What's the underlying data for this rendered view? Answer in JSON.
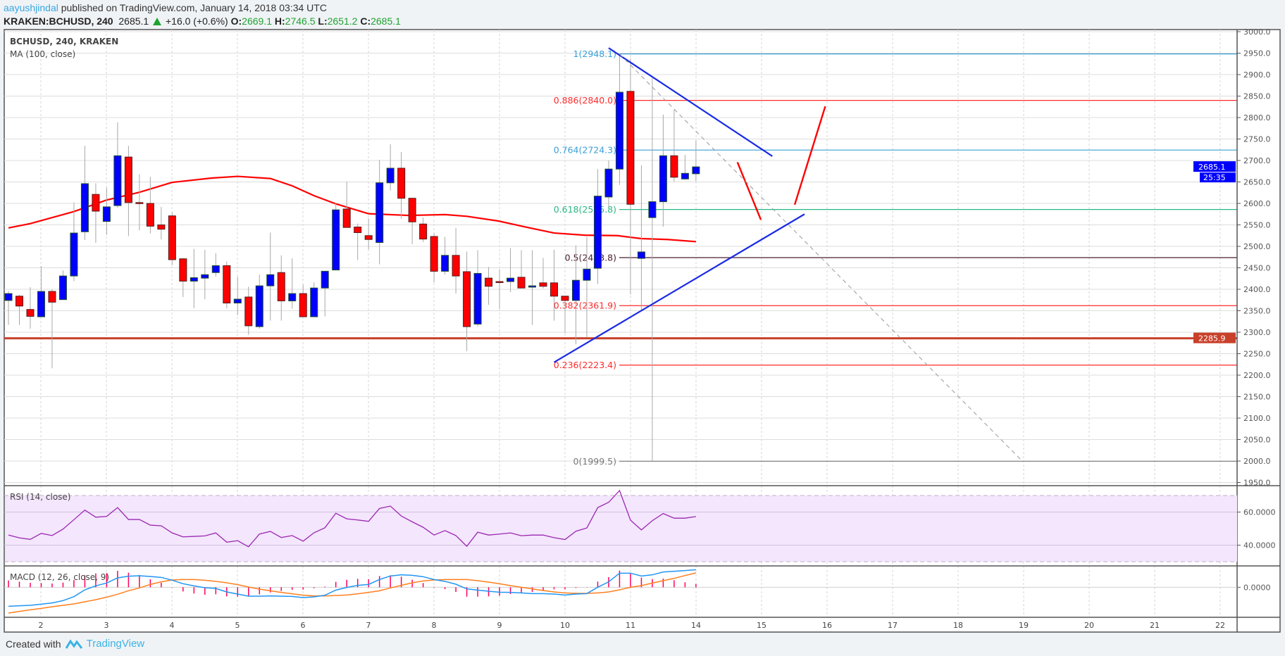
{
  "header": {
    "author": "aayushjindal",
    "published": " published on TradingView.com, January 14, 2018 03:34 UTC",
    "symbol": "KRAKEN:BCHUSD, 240",
    "last": "2685.1",
    "change": "+16.0 (+0.6%)",
    "o_label": "O:",
    "o": "2669.1",
    "h_label": "H:",
    "h": "2746.5",
    "l_label": "L:",
    "l": "2651.2",
    "c_label": "C:",
    "c": "2685.1"
  },
  "legend": {
    "main": "BCHUSD, 240, KRAKEN",
    "ma": "MA (100, close)",
    "rsi": "RSI (14, close)",
    "macd": "MACD (12, 26, close, 9)"
  },
  "colors": {
    "up": "#0000ff",
    "down": "#ff0000",
    "ma": "#ff0000",
    "support": "#c8402a",
    "trend": "#1a2be6",
    "rsi": "#9c27b0",
    "macd": "#2196f3",
    "signal": "#ff7f1f",
    "hist": "#ff0060",
    "fib_blue": "#3a9fd6",
    "fib_red": "#ff2a2a",
    "fib_green": "#2bb783",
    "fib_dark": "#4a1d2d",
    "fib_gray": "#777777"
  },
  "footer": {
    "created_with": "Created with",
    "brand": "TradingView"
  },
  "chart_data": {
    "type": "candlestick",
    "symbol": "BCHUSD",
    "interval": "240",
    "exchange": "KRAKEN",
    "ylim": [
      1950,
      3000
    ],
    "y_ticks": [
      "1950.0",
      "2000.0",
      "2050.0",
      "2100.0",
      "2150.0",
      "2200.0",
      "2250.0",
      "2300.0",
      "2350.0",
      "2400.0",
      "2450.0",
      "2500.0",
      "2550.0",
      "2600.0",
      "2650.0",
      "2700.0",
      "2750.0",
      "2800.0",
      "2850.0",
      "2900.0",
      "2950.0",
      "3000.0"
    ],
    "x_labels": [
      "2",
      "3",
      "4",
      "5",
      "6",
      "7",
      "8",
      "9",
      "10",
      "11",
      "14",
      "15",
      "16",
      "17",
      "18",
      "19",
      "20",
      "21",
      "22"
    ],
    "last_price_label": "2685.1",
    "countdown_label": "25:35",
    "support": {
      "value": 2285.9,
      "label": "2285.9"
    },
    "ohlc": [
      [
        2374,
        2396,
        2317,
        2390
      ],
      [
        2384,
        2387,
        2317,
        2361
      ],
      [
        2353,
        2405,
        2308,
        2337
      ],
      [
        2336,
        2454,
        2336,
        2395
      ],
      [
        2395,
        2400,
        2216,
        2370
      ],
      [
        2376,
        2444,
        2376,
        2431
      ],
      [
        2431,
        2602,
        2419,
        2531
      ],
      [
        2534,
        2734,
        2515,
        2646
      ],
      [
        2621,
        2647,
        2508,
        2582
      ],
      [
        2558,
        2637,
        2527,
        2592
      ],
      [
        2595,
        2789,
        2590,
        2711
      ],
      [
        2708,
        2734,
        2524,
        2602
      ],
      [
        2602,
        2668,
        2537,
        2601
      ],
      [
        2600,
        2662,
        2530,
        2547
      ],
      [
        2550,
        2592,
        2516,
        2540
      ],
      [
        2571,
        2579,
        2456,
        2469
      ],
      [
        2471,
        2473,
        2382,
        2419
      ],
      [
        2419,
        2494,
        2356,
        2427
      ],
      [
        2426,
        2492,
        2377,
        2434
      ],
      [
        2439,
        2484,
        2430,
        2455
      ],
      [
        2455,
        2465,
        2356,
        2368
      ],
      [
        2368,
        2429,
        2340,
        2377
      ],
      [
        2382,
        2406,
        2294,
        2315
      ],
      [
        2313,
        2434,
        2308,
        2408
      ],
      [
        2408,
        2532,
        2327,
        2434
      ],
      [
        2439,
        2479,
        2327,
        2373
      ],
      [
        2373,
        2472,
        2355,
        2390
      ],
      [
        2390,
        2411,
        2336,
        2336
      ],
      [
        2336,
        2416,
        2336,
        2403
      ],
      [
        2403,
        2442,
        2337,
        2442
      ],
      [
        2445,
        2602,
        2444,
        2585
      ],
      [
        2587,
        2651,
        2544,
        2544
      ],
      [
        2545,
        2553,
        2468,
        2532
      ],
      [
        2525,
        2565,
        2493,
        2516
      ],
      [
        2509,
        2701,
        2458,
        2648
      ],
      [
        2648,
        2738,
        2630,
        2682
      ],
      [
        2682,
        2720,
        2564,
        2612
      ],
      [
        2612,
        2612,
        2505,
        2557
      ],
      [
        2552,
        2567,
        2510,
        2517
      ],
      [
        2523,
        2531,
        2416,
        2442
      ],
      [
        2442,
        2522,
        2434,
        2479
      ],
      [
        2479,
        2543,
        2390,
        2431
      ],
      [
        2441,
        2488,
        2256,
        2313
      ],
      [
        2319,
        2491,
        2313,
        2437
      ],
      [
        2426,
        2452,
        2364,
        2407
      ],
      [
        2418,
        2447,
        2355,
        2417
      ],
      [
        2418,
        2496,
        2393,
        2426
      ],
      [
        2428,
        2491,
        2402,
        2403
      ],
      [
        2405,
        2491,
        2317,
        2408
      ],
      [
        2415,
        2473,
        2402,
        2407
      ],
      [
        2415,
        2492,
        2327,
        2384
      ],
      [
        2384,
        2384,
        2298,
        2374
      ],
      [
        2374,
        2502,
        2272,
        2421
      ],
      [
        2421,
        2522,
        2288,
        2447
      ],
      [
        2449,
        2680,
        2412,
        2617
      ],
      [
        2615,
        2700,
        2591,
        2680
      ],
      [
        2680,
        2948,
        2643,
        2859
      ],
      [
        2861,
        2938,
        2388,
        2598
      ],
      [
        2472,
        2689,
        2349,
        2487
      ],
      [
        2567,
        2892,
        1999.5,
        2604
      ],
      [
        2604,
        2807,
        2546,
        2711
      ],
      [
        2711,
        2818,
        2651,
        2661
      ],
      [
        2657,
        2713,
        2655,
        2670
      ],
      [
        2669.1,
        2746.5,
        2651.2,
        2685.1
      ]
    ],
    "ma100": [
      [
        1,
        2543
      ],
      [
        3,
        2553
      ],
      [
        7,
        2581
      ],
      [
        10,
        2608
      ],
      [
        13,
        2626
      ],
      [
        16,
        2649
      ],
      [
        19.6,
        2659
      ],
      [
        22,
        2663
      ],
      [
        25,
        2658
      ],
      [
        27,
        2641
      ],
      [
        29,
        2618
      ],
      [
        31,
        2599
      ],
      [
        34,
        2576
      ],
      [
        37.7,
        2572
      ],
      [
        41,
        2574
      ],
      [
        43,
        2570
      ],
      [
        45.9,
        2559
      ],
      [
        48.4,
        2545
      ],
      [
        51,
        2531
      ],
      [
        53.8,
        2526
      ],
      [
        56.8,
        2525
      ],
      [
        59,
        2518
      ],
      [
        61.4,
        2516
      ],
      [
        64,
        2511
      ]
    ],
    "fibonacci": [
      {
        "label": "1(2948.1)",
        "value": 2948.1,
        "color": "fib_blue"
      },
      {
        "label": "0.886(2840.0)",
        "value": 2840.0,
        "color": "fib_red"
      },
      {
        "label": "0.764(2724.3)",
        "value": 2724.3,
        "color": "fib_blue"
      },
      {
        "label": "0.618(2585.8)",
        "value": 2585.8,
        "color": "fib_green"
      },
      {
        "label": "0.5(2473.8)",
        "value": 2473.8,
        "color": "fib_dark"
      },
      {
        "label": "0.382(2361.9)",
        "value": 2361.9,
        "color": "fib_red"
      },
      {
        "label": "0.236(2223.4)",
        "value": 2223.4,
        "color": "fib_red"
      },
      {
        "label": "0(1999.5)",
        "value": 1999.5,
        "color": "fib_gray"
      }
    ],
    "drawings": [
      {
        "name": "descending-trendline",
        "from": [
          56,
          2962
        ],
        "to": [
          71,
          2710
        ],
        "color": "trend",
        "width": 2.2
      },
      {
        "name": "ascending-trendline",
        "from": [
          51,
          2230
        ],
        "to": [
          73.95,
          2575
        ],
        "color": "trend",
        "width": 2.2
      },
      {
        "name": "projection-down-arrow-line",
        "from": [
          67.8,
          2696
        ],
        "to": [
          69.95,
          2562
        ],
        "color": "down",
        "width": 2.4
      },
      {
        "name": "projection-up-arrow-line",
        "from": [
          73.05,
          2597
        ],
        "to": [
          75.85,
          2826
        ],
        "color": "down",
        "width": 2.4
      },
      {
        "name": "fib-trend-dashed-line",
        "from": [
          57,
          2948
        ],
        "to": [
          93.9,
          2000
        ],
        "color": "fib_gray",
        "width": 1,
        "dashed": true
      }
    ],
    "rsi": {
      "ticks": [
        "60.0000",
        "40.0000"
      ],
      "values": [
        46.1,
        44.4,
        43.5,
        47.1,
        45.8,
        49.7,
        55.4,
        61.2,
        56.9,
        57.4,
        62.7,
        55.5,
        55.5,
        52.1,
        51.7,
        47.4,
        45.0,
        45.3,
        45.6,
        47.4,
        41.8,
        42.7,
        39.0,
        46.7,
        48.3,
        44.6,
        45.8,
        42.4,
        47.5,
        50.5,
        59.3,
        55.9,
        55.2,
        54.4,
        62.2,
        63.6,
        57.6,
        54.1,
        50.8,
        46.1,
        48.8,
        45.8,
        39.3,
        47.8,
        46.1,
        46.7,
        47.4,
        45.7,
        46.1,
        46.1,
        44.5,
        43.4,
        48.4,
        50.4,
        62.7,
        65.9,
        73.0,
        55.1,
        49.2,
        54.8,
        59.1,
        56.3,
        56.3,
        57.3
      ]
    },
    "macd": {
      "ticks": [
        "0.0000"
      ],
      "ylim": [
        -64,
        45.5
      ],
      "macd": [
        -40.5,
        -39.5,
        -38.5,
        -36,
        -33.5,
        -28.5,
        -20,
        -5.5,
        3,
        9,
        20,
        23.5,
        24.5,
        23,
        21,
        15,
        7.5,
        3,
        -1,
        -2.5,
        -10,
        -14.5,
        -19,
        -19,
        -18.5,
        -19,
        -19.5,
        -22,
        -20.5,
        -17,
        -6,
        -0.5,
        4,
        6,
        16.5,
        24,
        26.5,
        25.5,
        22.5,
        16.5,
        12.5,
        6.5,
        -3.5,
        -6,
        -8.5,
        -10.5,
        -11,
        -12,
        -13.5,
        -13.5,
        -14.5,
        -16.5,
        -14.5,
        -13.5,
        0,
        11.5,
        30,
        30,
        24,
        26.5,
        32.5,
        34,
        35.5,
        37.5
      ],
      "signal": [
        -55,
        -51.5,
        -48,
        -45,
        -41.5,
        -38.5,
        -35.5,
        -31,
        -26.5,
        -21,
        -15,
        -7.5,
        -1.5,
        6,
        11.5,
        15.5,
        16.5,
        16.5,
        15,
        12.5,
        9.5,
        5.5,
        0.5,
        -4,
        -7.5,
        -11,
        -14,
        -17,
        -18.5,
        -18.5,
        -17.5,
        -16.5,
        -14,
        -11,
        -7.5,
        -1.5,
        4,
        9.5,
        13.5,
        15.5,
        16.5,
        16.5,
        16.5,
        14,
        11,
        7.5,
        3.5,
        0,
        -3.5,
        -7,
        -10,
        -12,
        -13,
        -13,
        -12,
        -10,
        -5.5,
        0,
        3.5,
        9,
        14,
        19,
        25,
        30.5
      ]
    }
  }
}
